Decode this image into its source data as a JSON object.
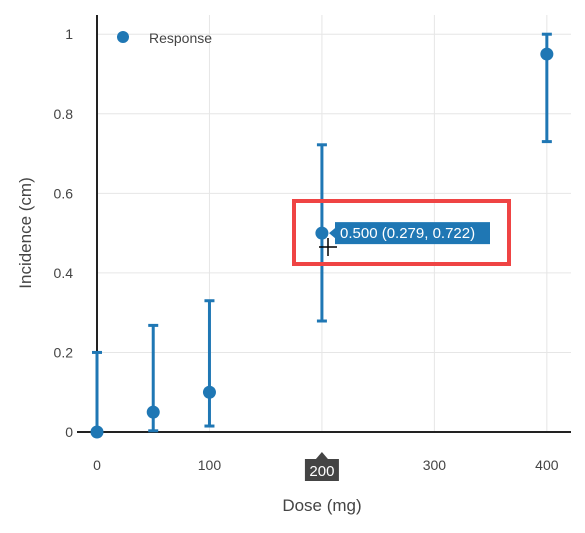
{
  "chart_data": {
    "type": "scatter",
    "xlabel": "Dose (mg)",
    "ylabel": "Incidence (cm)",
    "xlim": [
      -8,
      410
    ],
    "ylim": [
      -0.02,
      1.05
    ],
    "x_ticks": [
      0,
      100,
      200,
      300,
      400
    ],
    "y_ticks": [
      0,
      0.2,
      0.4,
      0.6,
      0.8,
      1
    ],
    "y_tick_labels": [
      "0",
      "0.2",
      "0.4",
      "0.6",
      "0.8",
      "1"
    ],
    "grid": true,
    "legend_position": "top-left",
    "series": [
      {
        "name": "Response",
        "color": "#1f77b4",
        "points": [
          {
            "x": 0,
            "y": 0.0,
            "lower": 0.0,
            "upper": 0.2
          },
          {
            "x": 50,
            "y": 0.05,
            "lower": 0.003,
            "upper": 0.268
          },
          {
            "x": 100,
            "y": 0.1,
            "lower": 0.015,
            "upper": 0.33
          },
          {
            "x": 200,
            "y": 0.5,
            "lower": 0.279,
            "upper": 0.722
          },
          {
            "x": 400,
            "y": 0.95,
            "lower": 0.73,
            "upper": 1.0
          }
        ]
      }
    ],
    "hover": {
      "x": 200,
      "y": 0.5,
      "text": "0.500 (0.279, 0.722)",
      "spike_label": "200"
    },
    "highlight_color": "#ef4444"
  }
}
